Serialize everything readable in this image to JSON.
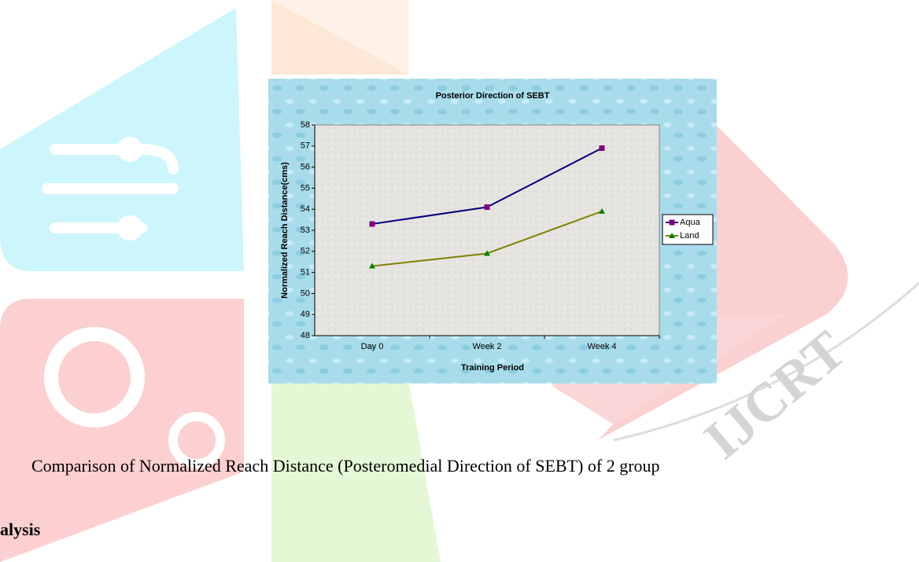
{
  "watermark": "IJCRT",
  "caption": "Comparison of Normalized Reach Distance (Posteromedial Direction of SEBT) of 2 group",
  "heading": "alysis",
  "chart_data": {
    "type": "line",
    "title": "Posterior Direction of SEBT",
    "x_label": "Training Period",
    "y_label": "Normalized Reach Distance(cms)",
    "categories": [
      "Day 0",
      "Week 2",
      "Week 4"
    ],
    "series": [
      {
        "name": "Aqua",
        "color": "#000080",
        "marker_color": "#800080",
        "marker": "square",
        "values": [
          53.3,
          54.1,
          56.9
        ]
      },
      {
        "name": "Land",
        "color": "#808000",
        "marker_color": "#008000",
        "marker": "triangle",
        "values": [
          51.3,
          51.9,
          53.9
        ]
      }
    ],
    "ylim": [
      48,
      58
    ],
    "yticks": [
      48,
      49,
      50,
      51,
      52,
      53,
      54,
      55,
      56,
      57,
      58
    ],
    "legend": "right"
  }
}
